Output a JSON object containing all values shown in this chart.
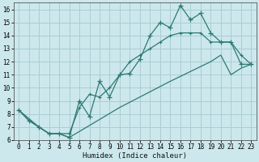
{
  "xlabel": "Humidex (Indice chaleur)",
  "bg_color": "#cce8ed",
  "grid_color": "#aacdd4",
  "line_color": "#2d7a72",
  "xlim": [
    -0.5,
    23.5
  ],
  "ylim": [
    6,
    16.5
  ],
  "xticks": [
    0,
    1,
    2,
    3,
    4,
    5,
    6,
    7,
    8,
    9,
    10,
    11,
    12,
    13,
    14,
    15,
    16,
    17,
    18,
    19,
    20,
    21,
    22,
    23
  ],
  "yticks": [
    6,
    7,
    8,
    9,
    10,
    11,
    12,
    13,
    14,
    15,
    16
  ],
  "line1_x": [
    0,
    1,
    2,
    3,
    4,
    5,
    6,
    7,
    8,
    9,
    10,
    11,
    12,
    13,
    14,
    15,
    16,
    17,
    18,
    19,
    20,
    21,
    22,
    23
  ],
  "line1_y": [
    8.3,
    7.5,
    7.0,
    6.5,
    6.5,
    6.2,
    9.0,
    7.8,
    10.5,
    9.3,
    11.0,
    11.1,
    12.2,
    14.0,
    15.0,
    14.6,
    16.3,
    15.2,
    15.7,
    14.2,
    13.5,
    13.5,
    11.8,
    11.8
  ],
  "line2_x": [
    0,
    2,
    3,
    5,
    6,
    7,
    8,
    9,
    10,
    11,
    12,
    13,
    14,
    15,
    16,
    17,
    18,
    19,
    20,
    21,
    22,
    23
  ],
  "line2_y": [
    8.3,
    7.0,
    6.5,
    6.5,
    8.5,
    9.5,
    9.3,
    10.0,
    11.0,
    12.0,
    12.5,
    13.0,
    13.5,
    14.0,
    14.2,
    14.2,
    14.2,
    13.5,
    13.5,
    13.5,
    12.5,
    11.8
  ],
  "line3_x": [
    0,
    1,
    2,
    3,
    4,
    5,
    10,
    15,
    19,
    20,
    21,
    22,
    23
  ],
  "line3_y": [
    8.3,
    7.5,
    7.0,
    6.5,
    6.5,
    6.2,
    8.5,
    10.5,
    12.0,
    12.5,
    11.0,
    11.5,
    11.8
  ]
}
